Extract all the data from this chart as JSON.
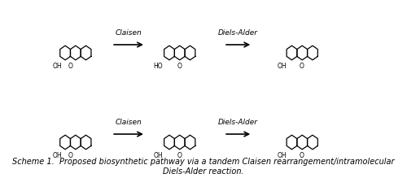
{
  "title": "Scheme 1.",
  "subtitle": "Proposed biosynthetic pathway via a tandem Claisen rearrangement/intramolecular Diels-Alder reaction.",
  "arrow1_label": "Claisen",
  "arrow2_label": "Diels-Alder",
  "arrow3_label": "Claisen",
  "arrow4_label": "Diels-Alder",
  "bg_color": "#ffffff",
  "text_color": "#000000",
  "font_size_title": 7,
  "font_size_labels": 6.5,
  "fig_width": 5.0,
  "fig_height": 2.19,
  "dpi": 100
}
